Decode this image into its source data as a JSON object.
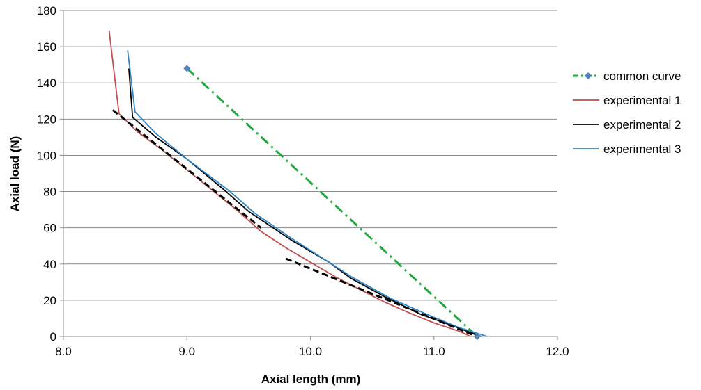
{
  "chart_data": {
    "type": "line",
    "xlabel": "Axial length (mm)",
    "ylabel": "Axial load (N)",
    "xlim": [
      8.0,
      12.0
    ],
    "ylim": [
      0,
      180
    ],
    "x_ticks": [
      8.0,
      9.0,
      10.0,
      11.0,
      12.0
    ],
    "x_tick_labels": [
      "8.0",
      "9.0",
      "10.0",
      "11.0",
      "12.0"
    ],
    "y_ticks": [
      0,
      20,
      40,
      60,
      80,
      100,
      120,
      140,
      160,
      180
    ],
    "y_tick_labels": [
      "0",
      "20",
      "40",
      "60",
      "80",
      "100",
      "120",
      "140",
      "160",
      "180"
    ],
    "grid": "horizontal",
    "legend_position": "right",
    "series": [
      {
        "name": "common curve",
        "color": "#1fa83a",
        "style": "dash-dot",
        "marker": "diamond",
        "marker_color": "#4f81bd",
        "points": [
          [
            9.0,
            148
          ],
          [
            11.35,
            0
          ]
        ]
      },
      {
        "name": "experimental 1",
        "color": "#c0504d",
        "style": "solid",
        "points": [
          [
            8.37,
            169
          ],
          [
            8.45,
            123
          ],
          [
            8.6,
            113
          ],
          [
            8.8,
            103
          ],
          [
            9.0,
            92
          ],
          [
            9.2,
            81
          ],
          [
            9.4,
            70
          ],
          [
            9.6,
            58
          ],
          [
            9.8,
            49
          ],
          [
            10.0,
            41
          ],
          [
            10.2,
            33
          ],
          [
            10.4,
            26
          ],
          [
            10.6,
            19
          ],
          [
            10.8,
            13
          ],
          [
            11.0,
            7.5
          ],
          [
            11.2,
            3
          ],
          [
            11.3,
            0
          ]
        ]
      },
      {
        "name": "experimental 2",
        "color": "#000000",
        "style": "solid",
        "points": [
          [
            8.53,
            148
          ],
          [
            8.56,
            121
          ],
          [
            8.75,
            110
          ],
          [
            9.0,
            98
          ],
          [
            9.3,
            81
          ],
          [
            9.5,
            69
          ],
          [
            9.85,
            53
          ],
          [
            10.15,
            41
          ],
          [
            10.33,
            32
          ],
          [
            10.6,
            22
          ],
          [
            10.9,
            12
          ],
          [
            11.15,
            6
          ],
          [
            11.38,
            0
          ]
        ]
      },
      {
        "name": "experimental 3",
        "color": "#2e86c8",
        "style": "solid",
        "points": [
          [
            8.52,
            158
          ],
          [
            8.58,
            124
          ],
          [
            8.75,
            112
          ],
          [
            9.0,
            98
          ],
          [
            9.35,
            80
          ],
          [
            9.55,
            68
          ],
          [
            9.85,
            54
          ],
          [
            10.15,
            41
          ],
          [
            10.33,
            33
          ],
          [
            10.65,
            21
          ],
          [
            10.95,
            12
          ],
          [
            11.2,
            5
          ],
          [
            11.43,
            0
          ]
        ]
      },
      {
        "name": "",
        "color": "#000000",
        "style": "dashed",
        "points": [
          [
            8.4,
            125
          ],
          [
            9.6,
            60
          ]
        ]
      },
      {
        "name": "",
        "color": "#000000",
        "style": "dashed",
        "points": [
          [
            9.8,
            43
          ],
          [
            11.35,
            0
          ]
        ]
      }
    ]
  }
}
